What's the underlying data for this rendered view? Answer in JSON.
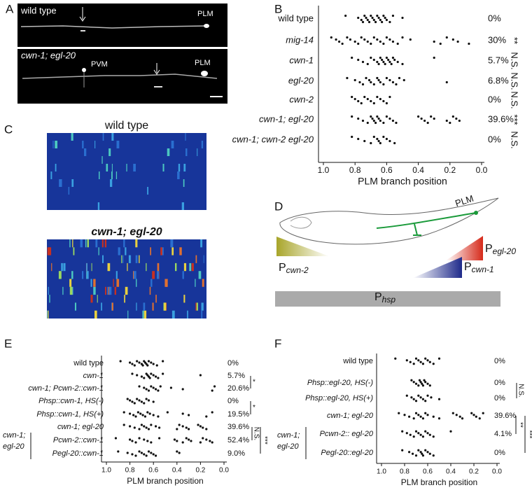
{
  "panel_labels": [
    "A",
    "B",
    "C",
    "D",
    "E",
    "F"
  ],
  "panel_a": {
    "images": [
      {
        "title": "wild type",
        "labels": [
          "PLM"
        ]
      },
      {
        "title": "cwn-1; egl-20",
        "labels": [
          "PVM",
          "PLM"
        ]
      }
    ]
  },
  "panel_c": {
    "titles": [
      "wild type",
      "cwn-1; egl-20"
    ]
  },
  "panel_d": {
    "neuron": "PLM",
    "promoters": [
      {
        "letter": "P",
        "gene": "cwn-2"
      },
      {
        "letter": "P",
        "gene": "egl-20"
      },
      {
        "letter": "P",
        "gene": "cwn-1"
      },
      {
        "letter": "P",
        "gene": "hsp"
      }
    ]
  },
  "chart_data": [
    {
      "type": "strip",
      "xlabel": "PLM branch position",
      "xlim": [
        1,
        0
      ],
      "xticks": [
        {
          "value": 1,
          "label": "1.0"
        },
        {
          "value": 0.8,
          "label": "0.8"
        },
        {
          "value": 0.6,
          "label": "0.6"
        },
        {
          "value": 0.4,
          "label": "0.4"
        },
        {
          "value": 0.2,
          "label": "0.2"
        },
        {
          "value": 0,
          "label": "0.0"
        }
      ],
      "rows": [
        {
          "name": "wild type",
          "percent": "0%",
          "values": [
            0.86,
            0.78,
            0.76,
            0.75,
            0.74,
            0.73,
            0.72,
            0.71,
            0.7,
            0.69,
            0.68,
            0.67,
            0.66,
            0.65,
            0.64,
            0.63,
            0.62,
            0.61,
            0.6,
            0.58,
            0.56,
            0.5
          ]
        },
        {
          "name": "mig-14",
          "percent": "30%",
          "sig": "**",
          "values": [
            0.95,
            0.92,
            0.9,
            0.88,
            0.85,
            0.83,
            0.8,
            0.78,
            0.76,
            0.74,
            0.72,
            0.7,
            0.68,
            0.66,
            0.64,
            0.62,
            0.6,
            0.58,
            0.56,
            0.53,
            0.5,
            0.45,
            0.3,
            0.26,
            0.22,
            0.18,
            0.15,
            0.08
          ]
        },
        {
          "name": "cwn-1",
          "percent": "5.7%",
          "sig": "N.S.",
          "values": [
            0.82,
            0.78,
            0.75,
            0.72,
            0.7,
            0.68,
            0.66,
            0.65,
            0.64,
            0.63,
            0.62,
            0.61,
            0.6,
            0.59,
            0.58,
            0.57,
            0.56,
            0.55,
            0.53,
            0.5,
            0.3
          ]
        },
        {
          "name": "egl-20",
          "percent": "6.8%",
          "sig": "N.S.",
          "values": [
            0.85,
            0.8,
            0.77,
            0.75,
            0.73,
            0.71,
            0.7,
            0.68,
            0.66,
            0.65,
            0.64,
            0.62,
            0.6,
            0.58,
            0.56,
            0.54,
            0.52,
            0.49,
            0.22
          ]
        },
        {
          "name": "cwn-2",
          "percent": "0%",
          "sig": "N.S.",
          "values": [
            0.82,
            0.8,
            0.78,
            0.76,
            0.74,
            0.72,
            0.7,
            0.68,
            0.66,
            0.64,
            0.62,
            0.6,
            0.58
          ]
        },
        {
          "name": "cwn-1; egl-20",
          "percent": "39.6%",
          "sig": "***",
          "values": [
            0.82,
            0.78,
            0.75,
            0.72,
            0.7,
            0.69,
            0.68,
            0.67,
            0.66,
            0.65,
            0.64,
            0.62,
            0.6,
            0.58,
            0.56,
            0.54,
            0.4,
            0.38,
            0.36,
            0.34,
            0.32,
            0.3,
            0.22,
            0.2,
            0.18,
            0.16,
            0.14
          ]
        },
        {
          "name": "cwn-1; cwn-2 egl-20",
          "percent": "0%",
          "sig": "N.S.",
          "values": [
            0.82,
            0.78,
            0.74,
            0.7,
            0.68,
            0.66,
            0.65,
            0.64,
            0.62,
            0.6,
            0.58,
            0.55
          ]
        }
      ]
    },
    {
      "type": "strip",
      "xlabel": "PLM branch position",
      "xlim": [
        1,
        0
      ],
      "xticks": [
        {
          "value": 1,
          "label": "1.0"
        },
        {
          "value": 0.8,
          "label": "0.8"
        },
        {
          "value": 0.6,
          "label": "0.6"
        },
        {
          "value": 0.4,
          "label": "0.4"
        },
        {
          "value": 0.2,
          "label": "0.2"
        },
        {
          "value": 0,
          "label": "0.0"
        }
      ],
      "group_label": [
        "cwn-1;",
        "egl-20"
      ],
      "brackets": [
        "*",
        "*",
        "N.S.",
        "***"
      ],
      "rows": [
        {
          "name": "wild type",
          "percent": "0%",
          "values": [
            0.88,
            0.8,
            0.78,
            0.76,
            0.74,
            0.72,
            0.7,
            0.69,
            0.68,
            0.67,
            0.66,
            0.65,
            0.64,
            0.62,
            0.6,
            0.57,
            0.52
          ]
        },
        {
          "name": "cwn-1",
          "percent": "5.7%",
          "values": [
            0.78,
            0.74,
            0.7,
            0.68,
            0.66,
            0.65,
            0.64,
            0.63,
            0.62,
            0.6,
            0.58,
            0.56,
            0.52,
            0.2
          ]
        },
        {
          "name": "cwn-1; Pcwn-2::cwn-1",
          "percent": "20.6%",
          "values": [
            0.72,
            0.68,
            0.66,
            0.64,
            0.62,
            0.6,
            0.58,
            0.56,
            0.54,
            0.45,
            0.35,
            0.1,
            0.08
          ]
        },
        {
          "name": "Phsp::cwn-1, HS(-)",
          "percent": "0%",
          "values": [
            0.82,
            0.8,
            0.78,
            0.76,
            0.74,
            0.72,
            0.7,
            0.68,
            0.66,
            0.64,
            0.6
          ]
        },
        {
          "name": "Phsp::cwn-1, HS(+)",
          "percent": "19.5%",
          "values": [
            0.85,
            0.8,
            0.77,
            0.75,
            0.73,
            0.71,
            0.69,
            0.67,
            0.65,
            0.63,
            0.6,
            0.56,
            0.48,
            0.35,
            0.3,
            0.15,
            0.1
          ]
        },
        {
          "name": "cwn-1; egl-20",
          "percent": "39.6%",
          "values": [
            0.85,
            0.8,
            0.76,
            0.72,
            0.7,
            0.68,
            0.66,
            0.64,
            0.62,
            0.58,
            0.55,
            0.4,
            0.38,
            0.35,
            0.32,
            0.3,
            0.22,
            0.2,
            0.18,
            0.15
          ]
        },
        {
          "name": "Pcwn-2::cwn-1",
          "percent": "52.4%",
          "values": [
            0.92,
            0.8,
            0.78,
            0.75,
            0.72,
            0.68,
            0.65,
            0.62,
            0.55,
            0.42,
            0.4,
            0.35,
            0.32,
            0.3,
            0.28,
            0.2,
            0.18,
            0.15,
            0.12,
            0.1
          ]
        },
        {
          "name": "Pegl-20::cwn-1",
          "percent": "9.0%",
          "values": [
            0.9,
            0.82,
            0.78,
            0.75,
            0.72,
            0.7,
            0.68,
            0.66,
            0.64,
            0.62,
            0.6,
            0.58,
            0.4,
            0.38
          ]
        }
      ]
    },
    {
      "type": "strip",
      "xlabel": "PLM branch position",
      "xlim": [
        1,
        0
      ],
      "xticks": [
        {
          "value": 1,
          "label": "1.0"
        },
        {
          "value": 0.8,
          "label": "0.8"
        },
        {
          "value": 0.6,
          "label": "0.6"
        },
        {
          "value": 0.4,
          "label": "0.4"
        },
        {
          "value": 0.2,
          "label": "0.2"
        },
        {
          "value": 0,
          "label": "0.0"
        }
      ],
      "group_label": [
        "cwn-1;",
        "egl-20"
      ],
      "brackets": [
        "N.S.",
        "**",
        "***"
      ],
      "rows": [
        {
          "name": "wild type",
          "percent": "0%",
          "values": [
            0.88,
            0.78,
            0.75,
            0.72,
            0.7,
            0.68,
            0.66,
            0.64,
            0.62,
            0.6,
            0.58,
            0.55,
            0.5
          ]
        },
        {
          "name": "Phsp::egl-20, HS(-)",
          "percent": "0%",
          "values": [
            0.74,
            0.72,
            0.7,
            0.68,
            0.67,
            0.66,
            0.65,
            0.64,
            0.63,
            0.62,
            0.6,
            0.58
          ]
        },
        {
          "name": "Phsp::egl-20, HS(+)",
          "percent": "0%",
          "values": [
            0.78,
            0.74,
            0.72,
            0.7,
            0.68,
            0.66,
            0.64,
            0.62,
            0.6,
            0.57,
            0.5
          ]
        },
        {
          "name": "cwn-1; egl-20",
          "percent": "39.6%",
          "values": [
            0.85,
            0.8,
            0.76,
            0.72,
            0.7,
            0.68,
            0.66,
            0.64,
            0.62,
            0.6,
            0.55,
            0.5,
            0.38,
            0.35,
            0.32,
            0.3,
            0.22,
            0.2,
            0.18,
            0.15,
            0.12
          ]
        },
        {
          "name": "Pcwn-2:: egl-20",
          "percent": "4.1%",
          "values": [
            0.82,
            0.78,
            0.75,
            0.72,
            0.7,
            0.68,
            0.66,
            0.64,
            0.62,
            0.6,
            0.58,
            0.55,
            0.4
          ]
        },
        {
          "name": "Pegl-20::egl-20",
          "percent": "0%",
          "values": [
            0.82,
            0.76,
            0.73,
            0.7,
            0.68,
            0.66,
            0.65,
            0.64,
            0.62,
            0.6,
            0.58,
            0.55
          ]
        }
      ]
    }
  ]
}
